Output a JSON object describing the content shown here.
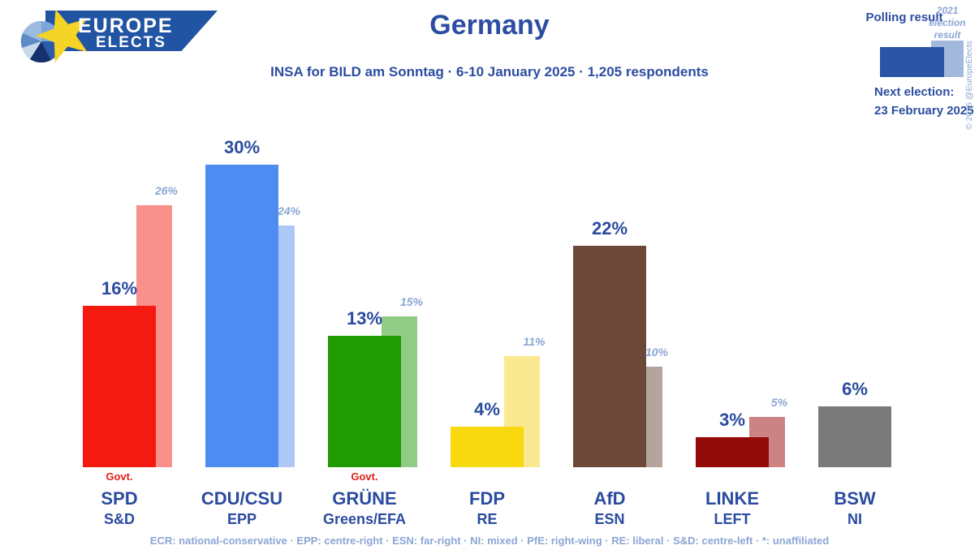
{
  "logo": {
    "line1": "EUROPE",
    "line2": "ELECTS"
  },
  "header": {
    "title": "Germany",
    "subtitle": "INSA for BILD am Sonntag · 6-10 January 2025 · 1,205 respondents"
  },
  "legend": {
    "polling_label": "Polling result",
    "election_label": "2021 election result",
    "next_election_label": "Next election:",
    "next_election_date": "23 February 2025",
    "polling_color": "#2b55a6",
    "election_color": "#a3b8dd"
  },
  "copyright": "© 2025 @EuropeElects",
  "govt_label": "Govt.",
  "footer": "ECR: national-conservative · EPP: centre-right · ESN: far-right · NI: mixed · PfE: right-wing · RE: liberal · S&D: centre-left · *: unaffiliated",
  "parties": [
    {
      "name": "SPD",
      "group": "S&D",
      "polling": 16,
      "election2021": 26,
      "govt": true,
      "color": "#f41a10",
      "light_color": "#f8918c"
    },
    {
      "name": "CDU/CSU",
      "group": "EPP",
      "polling": 30,
      "election2021": 24,
      "govt": false,
      "color": "#4f8cf2",
      "light_color": "#aec9f7"
    },
    {
      "name": "GRÜNE",
      "group": "Greens/EFA",
      "polling": 13,
      "election2021": 15,
      "govt": true,
      "color": "#219b04",
      "light_color": "#90cc86"
    },
    {
      "name": "FDP",
      "group": "RE",
      "polling": 4,
      "election2021": 11,
      "govt": false,
      "color": "#f8d80e",
      "light_color": "#fbe992"
    },
    {
      "name": "AfD",
      "group": "ESN",
      "polling": 22,
      "election2021": 10,
      "govt": false,
      "color": "#6c4839",
      "light_color": "#b5a49b"
    },
    {
      "name": "LINKE",
      "group": "LEFT",
      "polling": 3,
      "election2021": 5,
      "govt": false,
      "color": "#930b08",
      "light_color": "#cb8384"
    },
    {
      "name": "BSW",
      "group": "NI",
      "polling": 6,
      "election2021": null,
      "govt": false,
      "color": "#7a7a7a",
      "light_color": null
    }
  ],
  "chart_data": {
    "type": "bar",
    "title": "Germany",
    "subtitle": "INSA for BILD am Sonntag · 6-10 January 2025 · 1,205 respondents",
    "categories": [
      "SPD",
      "CDU/CSU",
      "GRÜNE",
      "FDP",
      "AfD",
      "LINKE",
      "BSW"
    ],
    "category_groups": [
      "S&D",
      "EPP",
      "Greens/EFA",
      "RE",
      "ESN",
      "LEFT",
      "NI"
    ],
    "series": [
      {
        "name": "Polling result",
        "values": [
          16,
          30,
          13,
          4,
          22,
          3,
          6
        ]
      },
      {
        "name": "2021 election result",
        "values": [
          26,
          24,
          15,
          11,
          10,
          5,
          null
        ]
      }
    ],
    "unit": "%",
    "ylim": [
      0,
      30
    ],
    "grid": false,
    "legend_position": "top-right",
    "annotations": {
      "govt_parties": [
        "SPD",
        "GRÜNE"
      ],
      "next_election": "23 February 2025"
    }
  }
}
